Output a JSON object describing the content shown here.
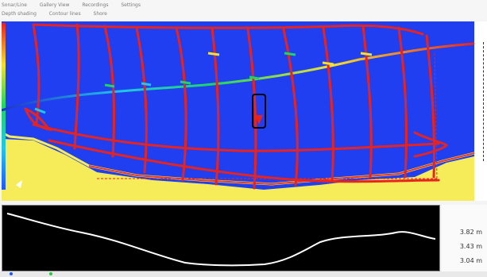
{
  "toolbar": {
    "row1": [
      "Sonar/Line",
      "Gallery View",
      "Recordings",
      "Settings"
    ],
    "row2": [
      "Depth shading",
      "Contour lines",
      "Shore"
    ]
  },
  "depth_panel": {
    "labels": [
      "3.82 m",
      "3.43 m",
      "3.04 m"
    ]
  },
  "colors": {
    "water": "#1f3ff0",
    "land": "#f6ec5a",
    "track_shallow": "#e8231f",
    "track_deep": "#1dd660",
    "profile_bg": "#000000",
    "profile_line": "#ffffff",
    "marker_blue": "#1f57ff",
    "marker_green": "#22cc33"
  }
}
